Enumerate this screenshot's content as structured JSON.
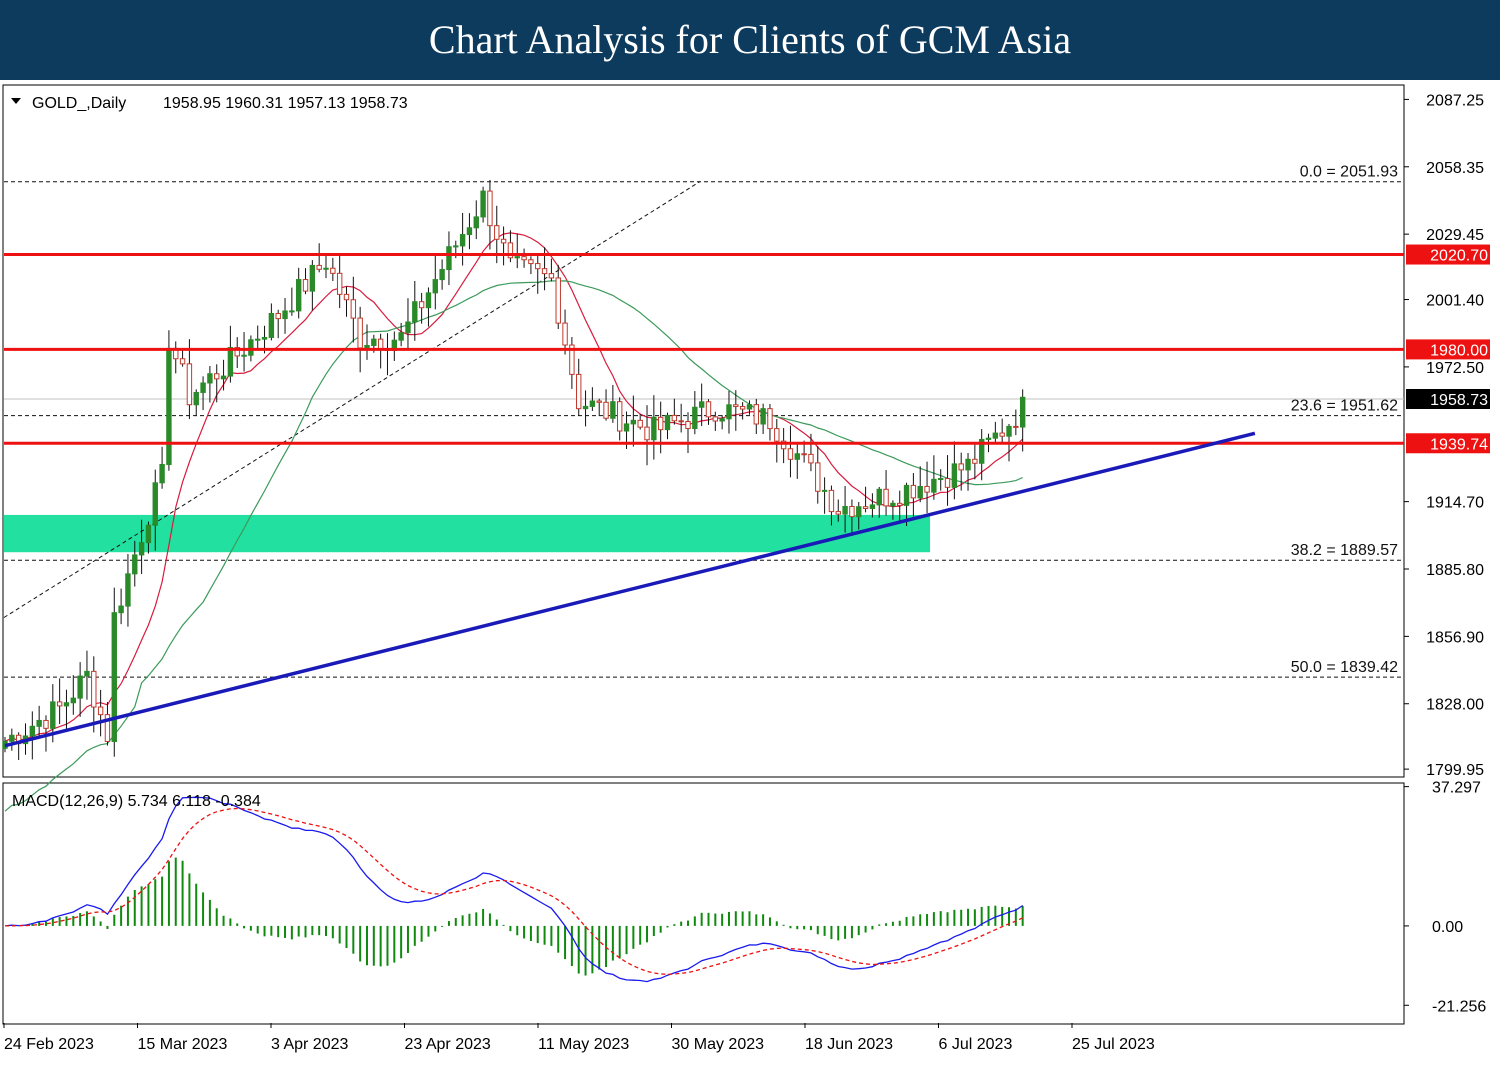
{
  "banner": {
    "title": "Chart Analysis for Clients of GCM Asia"
  },
  "colors": {
    "banner": "#0d3b5e",
    "bull": "#2a8a2a",
    "bear": "#c0392b",
    "resistance": "#ee1111",
    "trendline": "#1a1ab8",
    "zone": "#22e0a0",
    "ma_red": "#d81b3c",
    "ma_green": "#3c9a5a",
    "macd": "#1a1aee",
    "signal": "#ee1111",
    "histogram": "#0f8a0f"
  },
  "chart_data": [
    {
      "type": "candlestick",
      "title": "GOLD_,Daily",
      "ohlc_text": "1958.95 1960.31 1957.13 1958.73",
      "current_price": "1958.73",
      "y_ticks": [
        "2087.25",
        "2058.35",
        "2029.45",
        "2001.40",
        "1972.50",
        "1914.70",
        "1885.80",
        "1856.90",
        "1828.00",
        "1799.95"
      ],
      "ylim": [
        1797,
        2093
      ],
      "x_labels": [
        "24 Feb 2023",
        "15 Mar 2023",
        "3 Apr 2023",
        "23 Apr 2023",
        "11 May 2023",
        "30 May 2023",
        "18 Jun 2023",
        "6 Jul 2023",
        "25 Jul 2023"
      ],
      "resistance_levels": [
        {
          "label": "2020.70",
          "value": 2020.7
        },
        {
          "label": "1980.00",
          "value": 1980.0
        },
        {
          "label": "1939.74",
          "value": 1939.74
        }
      ],
      "fibonacci": [
        {
          "label": "0.0 = 2051.93",
          "value": 2051.93
        },
        {
          "label": "23.6 = 1951.62",
          "value": 1951.62
        },
        {
          "label": "38.2 = 1889.57",
          "value": 1889.57
        },
        {
          "label": "50.0 = 1839.42",
          "value": 1839.42
        }
      ],
      "trendline": [
        {
          "x": 0,
          "value": 1810
        },
        {
          "x": 183,
          "value": 1944
        }
      ],
      "support_zone": {
        "from": 1893,
        "to": 1909,
        "x_end": 135
      },
      "candles": []
    },
    {
      "type": "macd",
      "title": "MACD(12,26,9) 5.734 6.118 -0.384",
      "y_ticks": [
        "37.297",
        "0.00",
        "-21.256"
      ],
      "ylim": [
        -26,
        38
      ]
    }
  ]
}
